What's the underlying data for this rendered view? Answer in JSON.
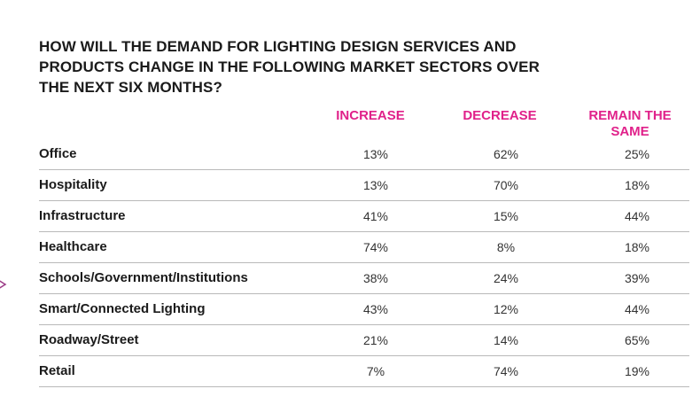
{
  "title_lines": [
    "HOW WILL THE DEMAND FOR LIGHTING DESIGN SERVICES AND",
    "PRODUCTS CHANGE IN THE FOLLOWING MARKET SECTORS OVER",
    "THE NEXT SIX MONTHS?"
  ],
  "colors": {
    "header_accent": "#e0218a",
    "row_divider": "#b9b9b9",
    "pointer": "#9b3b86"
  },
  "chart_data": {
    "type": "table",
    "title": "HOW WILL THE DEMAND FOR LIGHTING DESIGN SERVICES AND PRODUCTS CHANGE IN THE FOLLOWING MARKET SECTORS OVER THE NEXT SIX MONTHS?",
    "columns": [
      {
        "lines": [
          "INCREASE"
        ]
      },
      {
        "lines": [
          "DECREASE"
        ]
      },
      {
        "lines": [
          "REMAIN THE",
          "SAME"
        ]
      }
    ],
    "rows": [
      {
        "label": "Office",
        "values": [
          "13%",
          "62%",
          "25%"
        ]
      },
      {
        "label": "Hospitality",
        "values": [
          "13%",
          "70%",
          "18%"
        ]
      },
      {
        "label": "Infrastructure",
        "values": [
          "41%",
          "15%",
          "44%"
        ]
      },
      {
        "label": "Healthcare",
        "values": [
          "74%",
          "8%",
          "18%"
        ]
      },
      {
        "label": "Schools/Government/Institutions",
        "values": [
          "38%",
          "24%",
          "39%"
        ]
      },
      {
        "label": "Smart/Connected Lighting",
        "values": [
          "43%",
          "12%",
          "44%"
        ]
      },
      {
        "label": "Roadway/Street",
        "values": [
          "21%",
          "14%",
          "65%"
        ]
      },
      {
        "label": "Retail",
        "values": [
          "7%",
          "74%",
          "19%"
        ]
      }
    ]
  }
}
